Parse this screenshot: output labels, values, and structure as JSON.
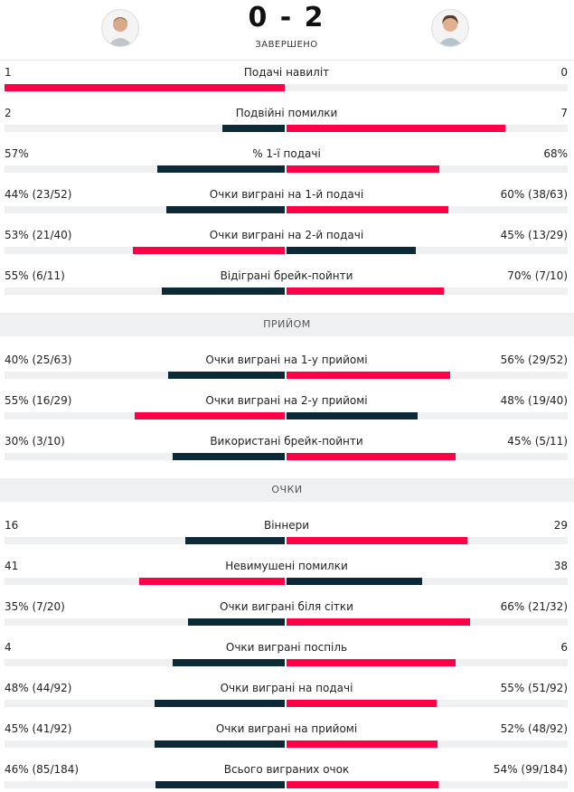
{
  "header": {
    "score": "0 - 2",
    "status": "ЗАВЕРШЕНО"
  },
  "sections": [
    {
      "rows": [
        {
          "label": "Подачі навиліт",
          "left": 1,
          "right": 0
        },
        {
          "label": "Подвійні помилки",
          "left": 2,
          "right": 7
        },
        {
          "label": "% 1-ї подачі",
          "left": {
            "value": 57,
            "label": "57%"
          },
          "right": {
            "value": 68,
            "label": "68%"
          }
        },
        {
          "label": "Очки виграні на 1-й подачі",
          "left": {
            "value": 44,
            "label": "44% (23/52)"
          },
          "right": {
            "value": 60,
            "label": "60% (38/63)"
          }
        },
        {
          "label": "Очки виграні на 2-й подачі",
          "left": {
            "value": 53,
            "label": "53% (21/40)"
          },
          "right": {
            "value": 45,
            "label": "45% (13/29)"
          }
        },
        {
          "label": "Відіграні брейк-пойнти",
          "left": {
            "value": 55,
            "label": "55% (6/11)"
          },
          "right": {
            "value": 70,
            "label": "70% (7/10)"
          }
        }
      ]
    },
    {
      "title": "ПРИЙОМ",
      "rows": [
        {
          "label": "Очки виграні на 1-у прийомі",
          "left": {
            "value": 40,
            "label": "40% (25/63)"
          },
          "right": {
            "value": 56,
            "label": "56% (29/52)"
          }
        },
        {
          "label": "Очки виграні на 2-у прийомі",
          "left": {
            "value": 55,
            "label": "55% (16/29)"
          },
          "right": {
            "value": 48,
            "label": "48% (19/40)"
          }
        },
        {
          "label": "Використані брейк-пойнти",
          "left": {
            "value": 30,
            "label": "30% (3/10)"
          },
          "right": {
            "value": 45,
            "label": "45% (5/11)"
          }
        }
      ]
    },
    {
      "title": "ОЧКИ",
      "rows": [
        {
          "label": "Віннери",
          "left": 16,
          "right": 29
        },
        {
          "label": "Невимушені помилки",
          "left": 41,
          "right": 38
        },
        {
          "label": "Очки виграні біля сітки",
          "left": {
            "value": 35,
            "label": "35% (7/20)"
          },
          "right": {
            "value": 66,
            "label": "66% (21/32)"
          }
        },
        {
          "label": "Очки виграні поспіль",
          "left": 4,
          "right": 6
        },
        {
          "label": "Очки виграні на подачі",
          "left": {
            "value": 48,
            "label": "48% (44/92)"
          },
          "right": {
            "value": 55,
            "label": "55% (51/92)"
          }
        },
        {
          "label": "Очки виграні на прийомі",
          "left": {
            "value": 45,
            "label": "45% (41/92)"
          },
          "right": {
            "value": 52,
            "label": "52% (48/92)"
          }
        },
        {
          "label": "Всього виграних очок",
          "left": {
            "value": 46,
            "label": "46% (85/184)"
          },
          "right": {
            "value": 54,
            "label": "54% (99/184)"
          }
        }
      ]
    }
  ]
}
